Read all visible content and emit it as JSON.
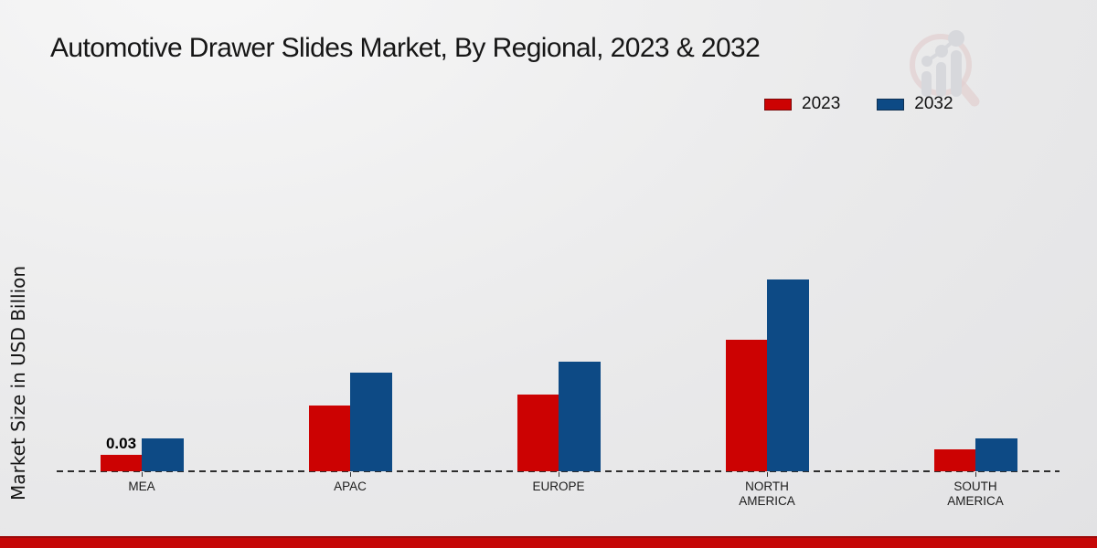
{
  "chart_data": {
    "type": "bar",
    "title": "Automotive Drawer Slides Market, By Regional, 2023 & 2032",
    "ylabel": "Market Size in USD Billion",
    "xlabel": "",
    "unit": "USD Billion",
    "categories": [
      "MEA",
      "APAC",
      "EUROPE",
      "NORTH\nAMERICA",
      "SOUTH\nAMERICA"
    ],
    "series": [
      {
        "name": "2023",
        "color": "#cc0202",
        "edge_color": "#7a0000",
        "values": [
          0.03,
          0.12,
          0.14,
          0.24,
          0.04
        ]
      },
      {
        "name": "2032",
        "color": "#0d4a85",
        "edge_color": "#0a2f55",
        "values": [
          0.06,
          0.18,
          0.2,
          0.35,
          0.06
        ]
      }
    ],
    "annotations": [
      {
        "category": "MEA",
        "series": "2023",
        "text": "0.03"
      }
    ],
    "baseline": {
      "value": 0,
      "style": "dashed",
      "color": "#2e2e2e"
    },
    "legend_position": "top-right",
    "grid": false,
    "ylim": [
      0,
      0.4
    ]
  },
  "watermark": {
    "name": "magnifier-growth-chart-logo",
    "ring_color": "#ddbcbc",
    "bar_color": "#c9cbd1"
  },
  "footer": {
    "bar_color": "#c50707",
    "bar_top_color": "#9d0a0a"
  }
}
